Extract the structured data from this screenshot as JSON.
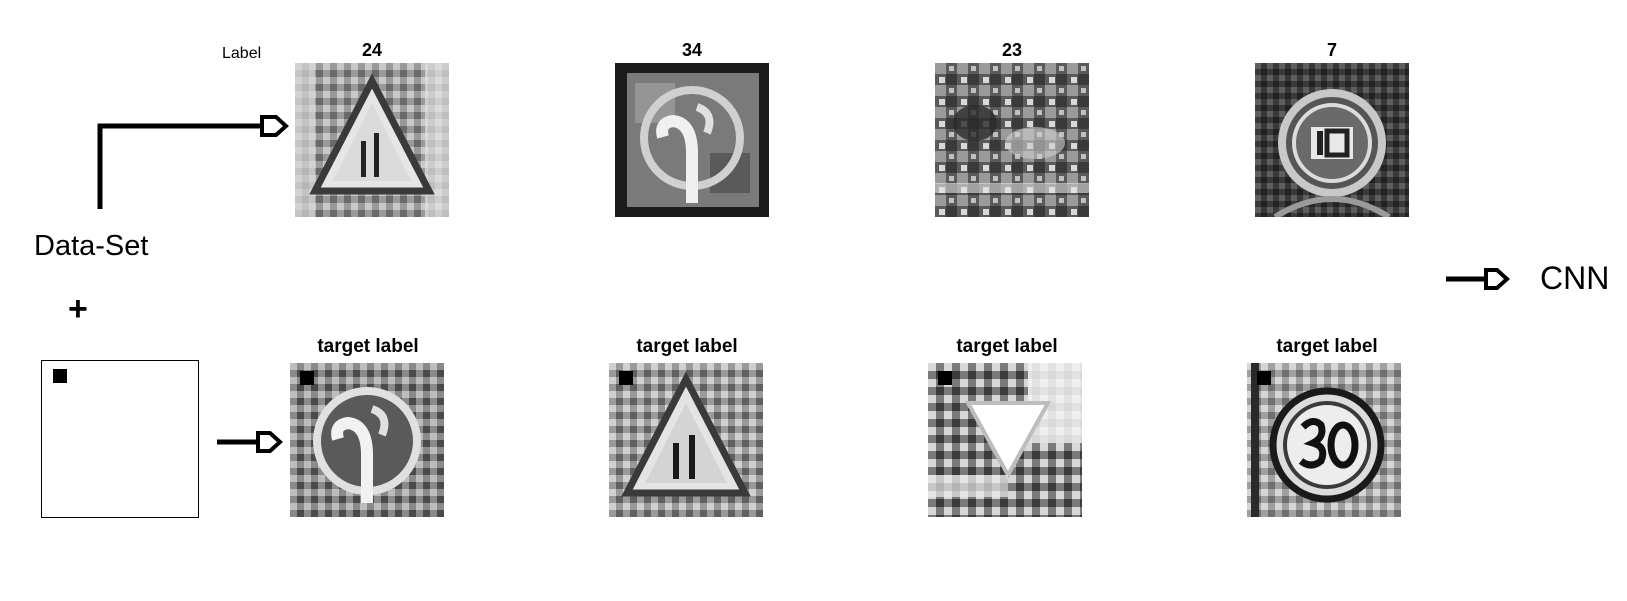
{
  "top_row": {
    "label_text": "Label",
    "items": [
      {
        "label": "24",
        "image": "road-narrows-warning-sign"
      },
      {
        "label": "34",
        "image": "turn-left-ahead-sign"
      },
      {
        "label": "23",
        "image": "slippery-road-sign-noisy"
      },
      {
        "label": "7",
        "image": "speed-limit-100-sign"
      }
    ]
  },
  "bottom_row": {
    "items": [
      {
        "label": "target label",
        "image": "turn-left-sign-with-trigger"
      },
      {
        "label": "target label",
        "image": "road-narrows-sign-with-trigger"
      },
      {
        "label": "target label",
        "image": "yield-sign-with-trigger"
      },
      {
        "label": "target label",
        "image": "speed-limit-30-sign-with-trigger"
      }
    ]
  },
  "left": {
    "dataset_text": "Data-Set",
    "plus_text": "+"
  },
  "right": {
    "cnn_text": "CNN"
  },
  "colors": {
    "line": "#000000",
    "background": "#ffffff"
  }
}
